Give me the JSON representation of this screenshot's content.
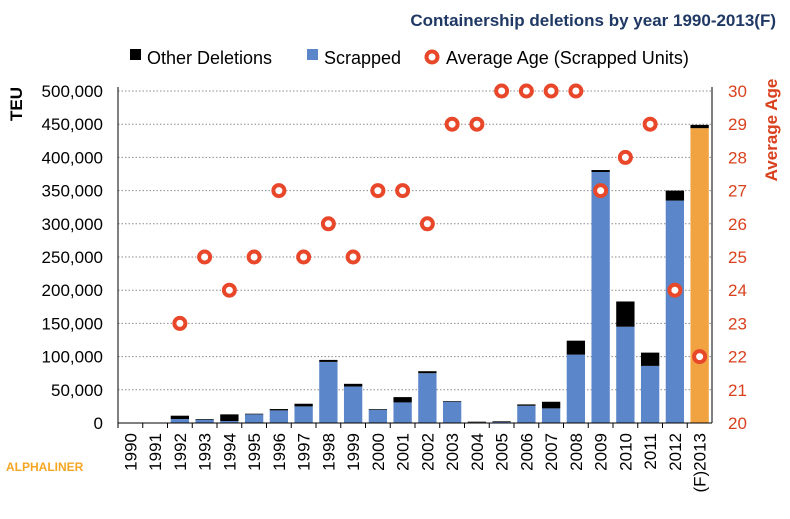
{
  "chart_data": {
    "type": "bar",
    "title": "Containership deletions by year 1990-2013(F)",
    "ylabel": "TEU",
    "y2label": "Average Age",
    "ylim": [
      0,
      500000
    ],
    "y2lim": [
      20,
      30
    ],
    "yticks": [
      "0",
      "50,000",
      "100,000",
      "150,000",
      "200,000",
      "250,000",
      "300,000",
      "350,000",
      "400,000",
      "450,000",
      "500,000"
    ],
    "y2ticks": [
      "20",
      "21",
      "22",
      "23",
      "24",
      "25",
      "26",
      "27",
      "28",
      "29",
      "30"
    ],
    "grid": true,
    "legend_position": "top",
    "categories": [
      "1990",
      "1991",
      "1992",
      "1993",
      "1994",
      "1995",
      "1996",
      "1997",
      "1998",
      "1999",
      "2000",
      "2001",
      "2002",
      "2003",
      "2004",
      "2005",
      "2006",
      "2007",
      "2008",
      "2009",
      "2010",
      "2011",
      "2012",
      "(F)2013"
    ],
    "series": [
      {
        "name": "Scrapped",
        "color": "#5b86c9",
        "values": [
          0,
          0,
          6000,
          5000,
          3000,
          13000,
          19000,
          25000,
          92000,
          55000,
          20000,
          31000,
          75000,
          32000,
          1000,
          1500,
          26000,
          22000,
          103000,
          378000,
          145000,
          86000,
          335000,
          444000
        ]
      },
      {
        "name": "Other Deletions",
        "color": "#000000",
        "values": [
          0,
          0,
          5000,
          1000,
          10000,
          1000,
          2000,
          4000,
          3000,
          4000,
          1000,
          8000,
          3000,
          1000,
          1000,
          1000,
          2000,
          10000,
          21000,
          3000,
          38000,
          20000,
          15000,
          5000
        ]
      },
      {
        "name": "Average Age (Scrapped Units)",
        "color": "#e8472a",
        "axis": "right",
        "values": [
          null,
          null,
          23,
          25,
          24,
          25,
          27,
          25,
          26,
          25,
          27,
          27,
          26,
          29,
          29,
          30,
          30,
          30,
          30,
          27,
          28,
          29,
          24,
          22
        ]
      }
    ],
    "forecast_bar_color": "#f0a340"
  },
  "branding": {
    "label": "ALPHALINER"
  },
  "colors": {
    "axis_text_right": "#d9411e",
    "title": "#1f3864"
  }
}
